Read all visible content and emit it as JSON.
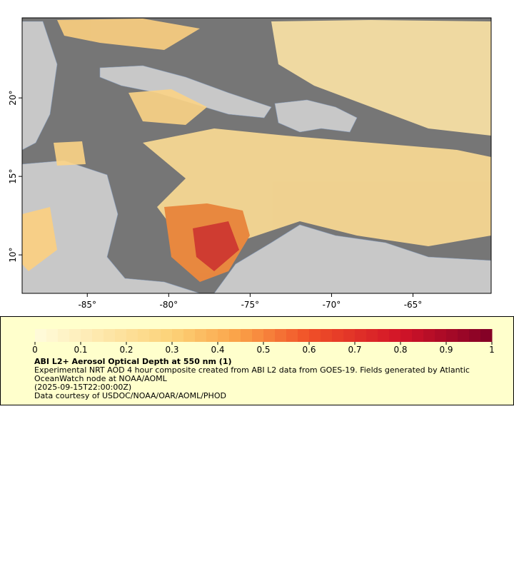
{
  "map": {
    "lonlim": [
      -89,
      -60.2
    ],
    "latlim": [
      7.55,
      25.1
    ],
    "lon_ticks": [
      {
        "value": -85,
        "label": "-85°"
      },
      {
        "value": -80,
        "label": "-80°"
      },
      {
        "value": -75,
        "label": "-75°"
      },
      {
        "value": -70,
        "label": "-70°"
      },
      {
        "value": -65,
        "label": "-65°"
      }
    ],
    "lat_ticks": [
      {
        "value": 20,
        "label": "20°"
      },
      {
        "value": 15,
        "label": "15°"
      },
      {
        "value": 10,
        "label": "10°"
      }
    ]
  },
  "colorbar": {
    "lim": [
      0,
      1
    ],
    "ticks": [
      0,
      0.1,
      0.2,
      0.3,
      0.4,
      0.5,
      0.6,
      0.7,
      0.8,
      0.9,
      1
    ]
  },
  "legend": {
    "title": "ABI L2+ Aerosol Optical Depth at 550 nm (1)",
    "description": "Experimental NRT AOD 4 hour composite created from ABI L2 data from GOES-19. Fields generated by Atlantic OceanWatch node at NOAA/AOML",
    "time": "(2025-09-15T22:00:00Z)",
    "credit": "Data courtesy of USDOC/NOAA/OAR/AOML/PHOD"
  }
}
